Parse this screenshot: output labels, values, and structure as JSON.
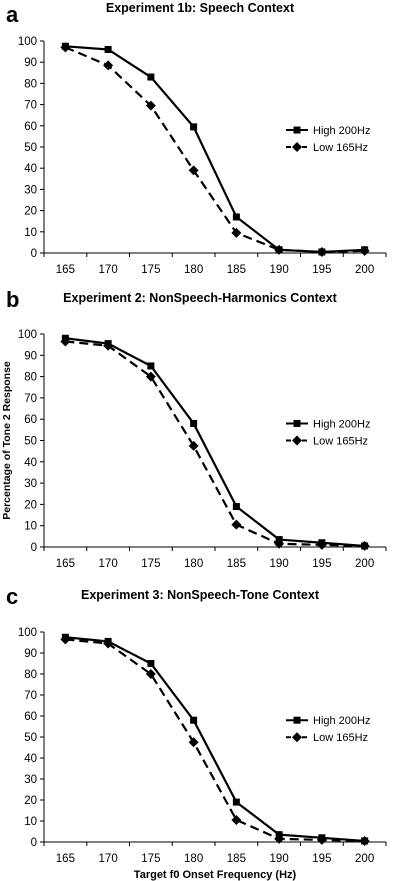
{
  "chart_data": [
    {
      "type": "line",
      "panel_label": "a",
      "title": "Experiment 1b: Speech Context",
      "xlabel": "",
      "ylabel": "",
      "x": [
        165,
        170,
        175,
        180,
        185,
        190,
        195,
        200
      ],
      "ylim": [
        0,
        100
      ],
      "yticks": [
        0,
        10,
        20,
        30,
        40,
        50,
        60,
        70,
        80,
        90,
        100
      ],
      "grid": false,
      "legend_position": "right",
      "series": [
        {
          "name": "High 200Hz",
          "marker": "square",
          "dash": "solid",
          "values": [
            97.5,
            96,
            83,
            59.5,
            17,
            1.5,
            0.5,
            1.5
          ]
        },
        {
          "name": "Low  165Hz",
          "marker": "diamond",
          "dash": "dashed",
          "values": [
            97,
            88.5,
            69.5,
            39,
            9.5,
            1.5,
            0.5,
            1
          ]
        }
      ]
    },
    {
      "type": "line",
      "panel_label": "b",
      "title": "Experiment 2: NonSpeech-Harmonics Context",
      "xlabel": "",
      "ylabel": "Percentage of Tone 2 Response",
      "x": [
        165,
        170,
        175,
        180,
        185,
        190,
        195,
        200
      ],
      "ylim": [
        0,
        100
      ],
      "yticks": [
        0,
        10,
        20,
        30,
        40,
        50,
        60,
        70,
        80,
        90,
        100
      ],
      "grid": false,
      "legend_position": "right",
      "series": [
        {
          "name": "High 200Hz",
          "marker": "square",
          "dash": "solid",
          "values": [
            98,
            95.5,
            85,
            58,
            19,
            3.5,
            2,
            0.5
          ]
        },
        {
          "name": "Low  165Hz",
          "marker": "diamond",
          "dash": "dashed",
          "values": [
            96.5,
            94.5,
            80,
            47.5,
            10.5,
            1.5,
            1,
            0.5
          ]
        }
      ]
    },
    {
      "type": "line",
      "panel_label": "c",
      "title": "Experiment 3: NonSpeech-Tone Context",
      "xlabel": "Target f0 Onset Frequency (Hz)",
      "ylabel": "",
      "x": [
        165,
        170,
        175,
        180,
        185,
        190,
        195,
        200
      ],
      "ylim": [
        0,
        100
      ],
      "yticks": [
        0,
        10,
        20,
        30,
        40,
        50,
        60,
        70,
        80,
        90,
        100
      ],
      "grid": false,
      "legend_position": "right",
      "series": [
        {
          "name": "High 200Hz",
          "marker": "square",
          "dash": "solid",
          "values": [
            97.5,
            95.5,
            85,
            58,
            19,
            3.5,
            2,
            0.5
          ]
        },
        {
          "name": "Low  165Hz",
          "marker": "diamond",
          "dash": "dashed",
          "values": [
            96.5,
            94.5,
            80,
            47.5,
            10.5,
            1.5,
            1,
            0.5
          ]
        }
      ]
    }
  ]
}
